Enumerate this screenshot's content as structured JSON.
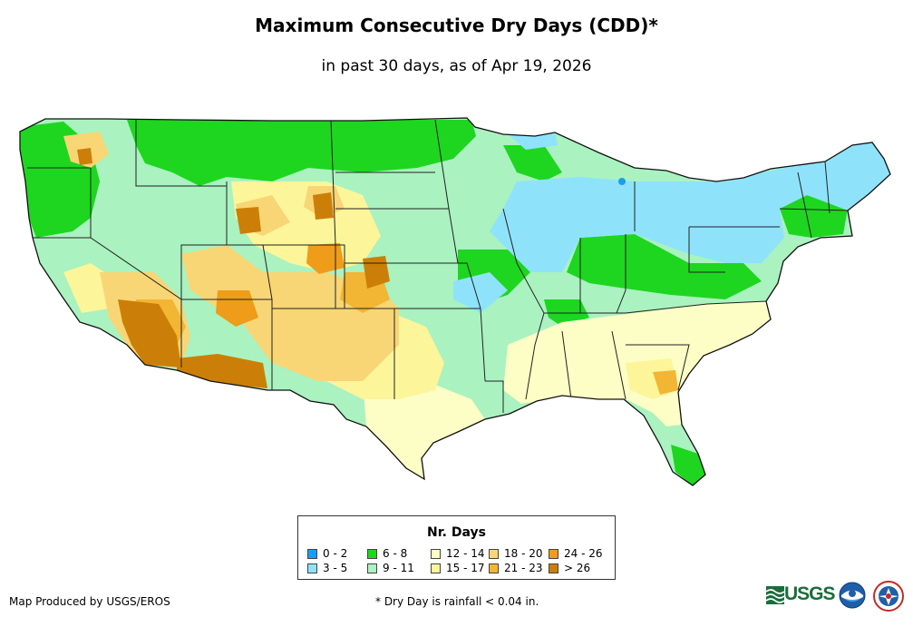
{
  "title": "Maximum Consecutive Dry Days (CDD)*",
  "subtitle": "in past 30 days, as of Apr 19, 2026",
  "legend": {
    "title": "Nr. Days",
    "items": [
      {
        "label": "0 - 2",
        "color": "#1e9cf0"
      },
      {
        "label": "3 - 5",
        "color": "#8ee3fb"
      },
      {
        "label": "6 - 8",
        "color": "#1ed620"
      },
      {
        "label": "9 - 11",
        "color": "#aaf2c0"
      },
      {
        "label": "12 - 14",
        "color": "#fdfdc6"
      },
      {
        "label": "15 - 17",
        "color": "#fcf59a"
      },
      {
        "label": "18 - 20",
        "color": "#f8d675"
      },
      {
        "label": "21 - 23",
        "color": "#f2b534"
      },
      {
        "label": "24 - 26",
        "color": "#ee9c1a"
      },
      {
        "label": "> 26",
        "color": "#cc7f08"
      }
    ]
  },
  "footer": {
    "producer": "Map Produced by USGS/EROS",
    "note": "* Dry Day is rainfall < 0.04 in."
  },
  "logos": {
    "usgs": "USGS",
    "usgs_icon": "usgs-wave-icon",
    "noaa_icon": "noaa-logo-icon",
    "nws_icon": "nws-logo-icon"
  }
}
